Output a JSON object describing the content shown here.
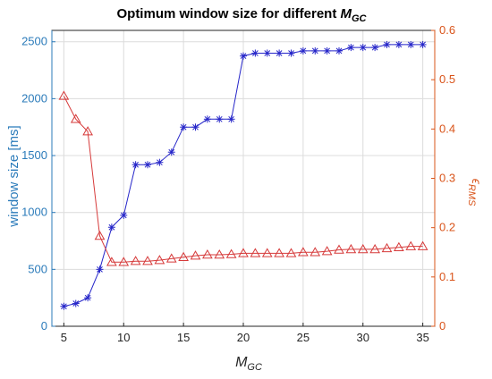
{
  "chart_data": {
    "type": "line",
    "title": "Optimum window size for different ",
    "title_sym": "M",
    "title_sub": "GC",
    "xlabel": "M",
    "xlabel_sub": "GC",
    "ylabel_left": "window size [ms]",
    "ylabel_right_eps": "ϵ",
    "ylabel_right_sub": "RMS",
    "xlim": [
      4,
      36
    ],
    "ylim_left": [
      0,
      2600
    ],
    "ylim_right": [
      0,
      0.6
    ],
    "x_ticks": [
      5,
      10,
      15,
      20,
      25,
      30,
      35
    ],
    "y_left_ticks": [
      0,
      500,
      1000,
      1500,
      2000,
      2500
    ],
    "y_right_ticks": [
      0,
      0.1,
      0.2,
      0.3,
      0.4,
      0.5,
      0.6
    ],
    "grid": true,
    "x": [
      5,
      6,
      7,
      8,
      9,
      10,
      11,
      12,
      13,
      14,
      15,
      16,
      17,
      18,
      19,
      20,
      21,
      22,
      23,
      24,
      25,
      26,
      27,
      28,
      29,
      30,
      31,
      32,
      33,
      34,
      35
    ],
    "series": [
      {
        "axis": "left",
        "marker": "asterisk",
        "color": "#2626c9",
        "values": [
          175,
          200,
          250,
          500,
          870,
          975,
          1420,
          1420,
          1440,
          1530,
          1750,
          1750,
          1820,
          1820,
          1820,
          2375,
          2400,
          2400,
          2400,
          2400,
          2420,
          2420,
          2420,
          2420,
          2450,
          2450,
          2450,
          2475,
          2475,
          2475,
          2475
        ]
      },
      {
        "axis": "right",
        "marker": "triangle",
        "color": "#d63a3a",
        "values": [
          0.467,
          0.42,
          0.395,
          0.183,
          0.13,
          0.13,
          0.132,
          0.132,
          0.134,
          0.137,
          0.14,
          0.143,
          0.145,
          0.145,
          0.146,
          0.148,
          0.148,
          0.148,
          0.148,
          0.148,
          0.15,
          0.15,
          0.152,
          0.155,
          0.156,
          0.156,
          0.156,
          0.158,
          0.16,
          0.162,
          0.162
        ]
      }
    ],
    "colors": {
      "left_axis": "#2b7bba",
      "right_axis": "#d9541a",
      "grid": "#dcdcdc",
      "axis_box": "#262626"
    }
  }
}
